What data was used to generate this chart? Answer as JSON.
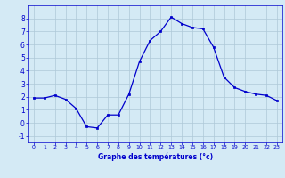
{
  "x": [
    0,
    1,
    2,
    3,
    4,
    5,
    6,
    7,
    8,
    9,
    10,
    11,
    12,
    13,
    14,
    15,
    16,
    17,
    18,
    19,
    20,
    21,
    22,
    23
  ],
  "y": [
    1.9,
    1.9,
    2.1,
    1.8,
    1.1,
    -0.3,
    -0.4,
    0.6,
    0.6,
    2.2,
    4.7,
    6.3,
    7.0,
    8.1,
    7.6,
    7.3,
    7.2,
    5.8,
    3.5,
    2.7,
    2.4,
    2.2,
    2.1,
    1.7
  ],
  "line_color": "#0000cc",
  "marker": "s",
  "marker_size": 2,
  "bg_color": "#d4eaf5",
  "grid_color": "#aec8d8",
  "xlabel": "Graphe des températures (°c)",
  "xlabel_color": "#0000cc",
  "xlim": [
    -0.5,
    23.5
  ],
  "ylim": [
    -1.5,
    9.0
  ],
  "yticks": [
    -1,
    0,
    1,
    2,
    3,
    4,
    5,
    6,
    7,
    8
  ],
  "xticks": [
    0,
    1,
    2,
    3,
    4,
    5,
    6,
    7,
    8,
    9,
    10,
    11,
    12,
    13,
    14,
    15,
    16,
    17,
    18,
    19,
    20,
    21,
    22,
    23
  ]
}
